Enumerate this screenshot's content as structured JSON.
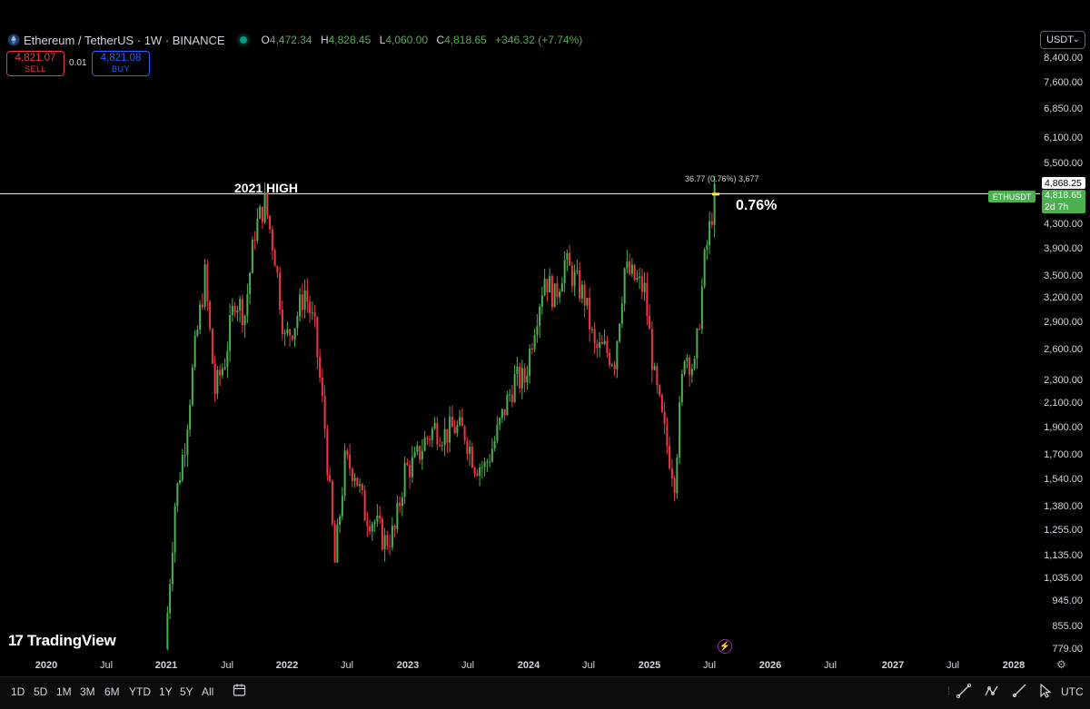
{
  "header": {
    "symbol_title": "Ethereum / TetherUS · 1W · BINANCE",
    "ohlc": {
      "o_label": "O",
      "o": "4,472.34",
      "h_label": "H",
      "h": "4,828.45",
      "l_label": "L",
      "l": "4,060.00",
      "c_label": "C",
      "c": "4,818.65",
      "change": "+346.32 (+7.74%)"
    }
  },
  "trade": {
    "sell_price": "4,821.07",
    "sell_label": "SELL",
    "spread": "0.01",
    "buy_price": "4,821.08",
    "buy_label": "BUY"
  },
  "currency": {
    "label": "USDT"
  },
  "price_axis": {
    "labels": [
      "8,400.00",
      "7,600.00",
      "6,850.00",
      "6,100.00",
      "5,500.00",
      "4,300.00",
      "3,900.00",
      "3,500.00",
      "3,200.00",
      "2,900.00",
      "2,600.00",
      "2,300.00",
      "2,100.00",
      "1,900.00",
      "1,700.00",
      "1,540.00",
      "1,380.00",
      "1,255.00",
      "1,135.00",
      "1,035.00",
      "945.00",
      "855.00",
      "779.00"
    ],
    "values": [
      8400,
      7600,
      6850,
      6100,
      5500,
      4300,
      3900,
      3500,
      3200,
      2900,
      2600,
      2300,
      2100,
      1900,
      1700,
      1540,
      1380,
      1255,
      1135,
      1035,
      945,
      855,
      779
    ],
    "tag_value": "4,868.25",
    "symbol_tag": "ETHUSDT",
    "last_price": "4,818.65",
    "countdown": "2d 7h"
  },
  "time_axis": {
    "labels": [
      "2020",
      "Jul",
      "2021",
      "Jul",
      "2022",
      "Jul",
      "2023",
      "Jul",
      "2024",
      "Jul",
      "2025",
      "Jul",
      "2026",
      "Jul",
      "2027",
      "Jul",
      "2028"
    ]
  },
  "annotations": {
    "high_label": "2021 HIGH",
    "pct_label": "0.76%",
    "measure_text": "36.77 (0.76%) 3,677"
  },
  "branding": {
    "logo_text": "TradingView"
  },
  "toolbar": {
    "timeframes": [
      "1D",
      "5D",
      "1M",
      "3M",
      "6M",
      "YTD",
      "1Y",
      "5Y",
      "All"
    ],
    "timezone": "UTC"
  },
  "colors": {
    "up": "#4caf50",
    "down": "#f23645",
    "background": "#000000",
    "line": "#ffffff"
  },
  "chart_data": {
    "type": "line",
    "title": "Ethereum / TetherUS · 1W · BINANCE",
    "scale": "log",
    "ylim": [
      779,
      8400
    ],
    "xlim": [
      "2020",
      "2028"
    ],
    "series": [
      {
        "name": "ETHUSDT",
        "x": [
          "2021-01",
          "2021-02",
          "2021-03",
          "2021-04",
          "2021-05",
          "2021-06",
          "2021-07",
          "2021-08",
          "2021-09",
          "2021-10",
          "2021-11",
          "2021-12",
          "2022-01",
          "2022-02",
          "2022-03",
          "2022-04",
          "2022-05",
          "2022-06",
          "2022-07",
          "2022-08",
          "2022-09",
          "2022-10",
          "2022-11",
          "2022-12",
          "2023-01",
          "2023-02",
          "2023-03",
          "2023-04",
          "2023-05",
          "2023-06",
          "2023-07",
          "2023-08",
          "2023-09",
          "2023-10",
          "2023-11",
          "2023-12",
          "2024-01",
          "2024-02",
          "2024-03",
          "2024-04",
          "2024-05",
          "2024-06",
          "2024-07",
          "2024-08",
          "2024-09",
          "2024-10",
          "2024-11",
          "2024-12",
          "2025-01",
          "2025-02",
          "2025-03",
          "2025-04",
          "2025-05",
          "2025-06",
          "2025-07",
          "2025-08"
        ],
        "values": [
          779,
          1400,
          1800,
          2600,
          3500,
          2200,
          2500,
          3200,
          3000,
          4200,
          4700,
          3800,
          2700,
          2900,
          3300,
          2800,
          1900,
          1100,
          1650,
          1600,
          1350,
          1300,
          1200,
          1250,
          1600,
          1650,
          1800,
          1900,
          1850,
          1900,
          1860,
          1650,
          1620,
          1800,
          2050,
          2300,
          2300,
          2900,
          3500,
          3200,
          3700,
          3450,
          3200,
          2600,
          2600,
          2500,
          3600,
          3450,
          3300,
          2300,
          1850,
          1550,
          2600,
          2400,
          3700,
          4818.65
        ]
      }
    ],
    "high_2021": 4868.25,
    "last": 4818.65
  }
}
